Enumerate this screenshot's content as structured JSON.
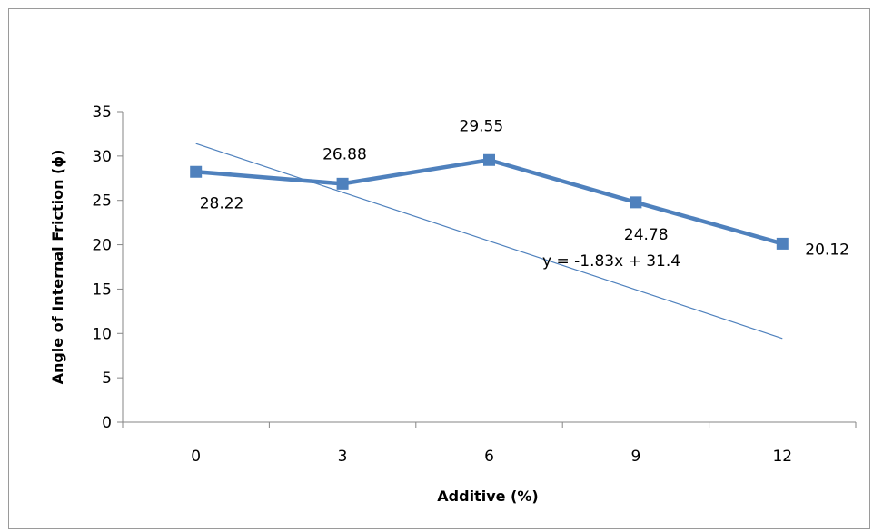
{
  "chart_data": {
    "type": "line",
    "title": "",
    "xlabel": "Additive (%)",
    "ylabel": "Angle of Internal Friction (ɸ)",
    "categories": [
      "0",
      "3",
      "6",
      "9",
      "12"
    ],
    "series": [
      {
        "values": [
          28.22,
          26.88,
          29.55,
          24.78,
          20.12
        ],
        "color": "#4F81BD",
        "marker": "square"
      }
    ],
    "data_labels": [
      "28.22",
      "26.88",
      "29.55",
      "24.78",
      "20.12"
    ],
    "trendline": {
      "type": "linear",
      "slope": -1.83,
      "intercept": 31.4,
      "equation": "y = -1.83x + 31.4",
      "color": "#4F81BD"
    },
    "y_ticks": [
      "0",
      "5",
      "10",
      "15",
      "20",
      "25",
      "30",
      "35"
    ],
    "ylim": [
      0,
      35
    ],
    "grid": false,
    "legend": "none"
  }
}
